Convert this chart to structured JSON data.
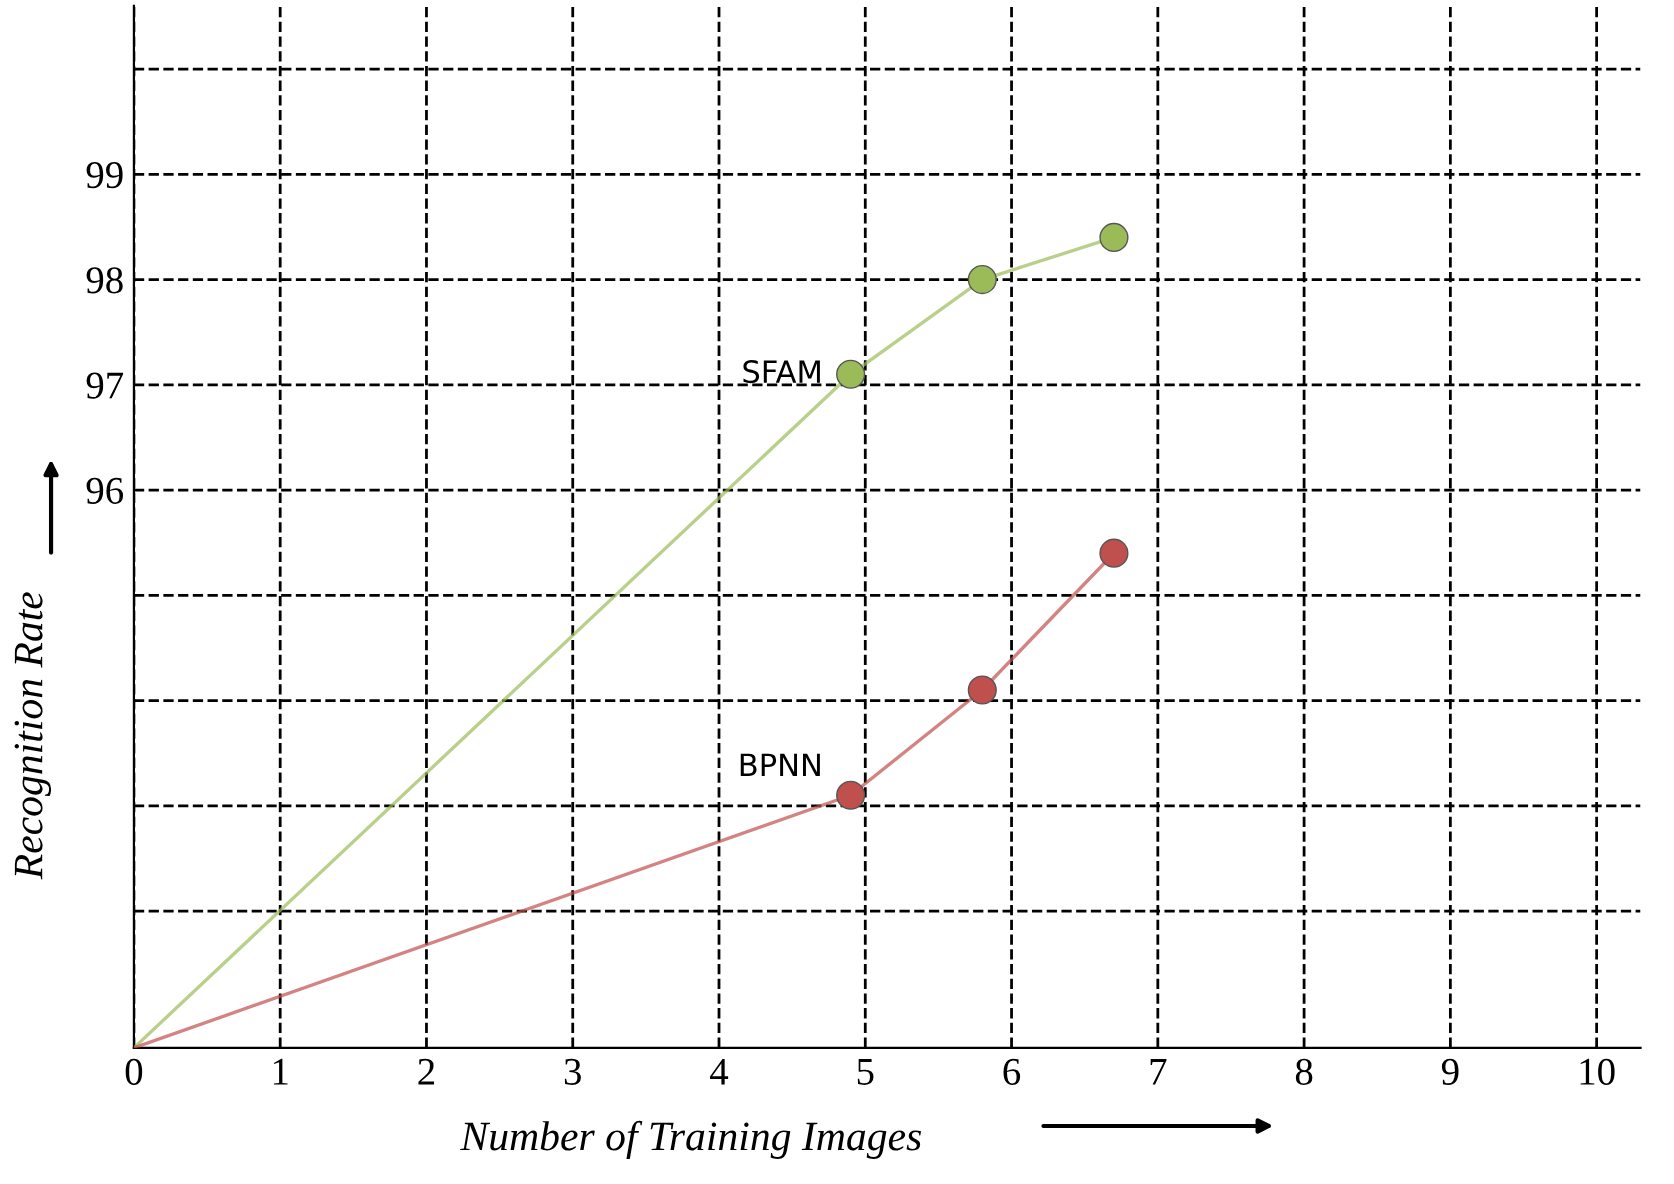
{
  "chart_data": {
    "type": "line",
    "xlabel": "Number of Training Images",
    "ylabel": "Recognition Rate",
    "xlim": [
      0,
      10.3
    ],
    "xticks": [
      0,
      1,
      2,
      3,
      4,
      5,
      6,
      7,
      8,
      9,
      10
    ],
    "ylim": [
      90.7,
      100.6
    ],
    "yticks": [
      {
        "value": 92,
        "label": null
      },
      {
        "value": 93,
        "label": null
      },
      {
        "value": 94,
        "label": null
      },
      {
        "value": 95,
        "label": null
      },
      96,
      97,
      98,
      99,
      {
        "value": 100,
        "label": null
      }
    ],
    "grid": true,
    "marker": "circle",
    "line_style": "solid",
    "series": [
      {
        "name": "SFAM",
        "color": "#9bbb59",
        "x": [
          0,
          4.9,
          5.8,
          6.7
        ],
        "values": [
          90.7,
          97.1,
          98.0,
          98.4
        ]
      },
      {
        "name": "BPNN",
        "color": "#c0504d",
        "x": [
          0,
          4.9,
          5.8,
          6.7
        ],
        "values": [
          90.7,
          93.1,
          94.1,
          95.4
        ]
      }
    ]
  }
}
